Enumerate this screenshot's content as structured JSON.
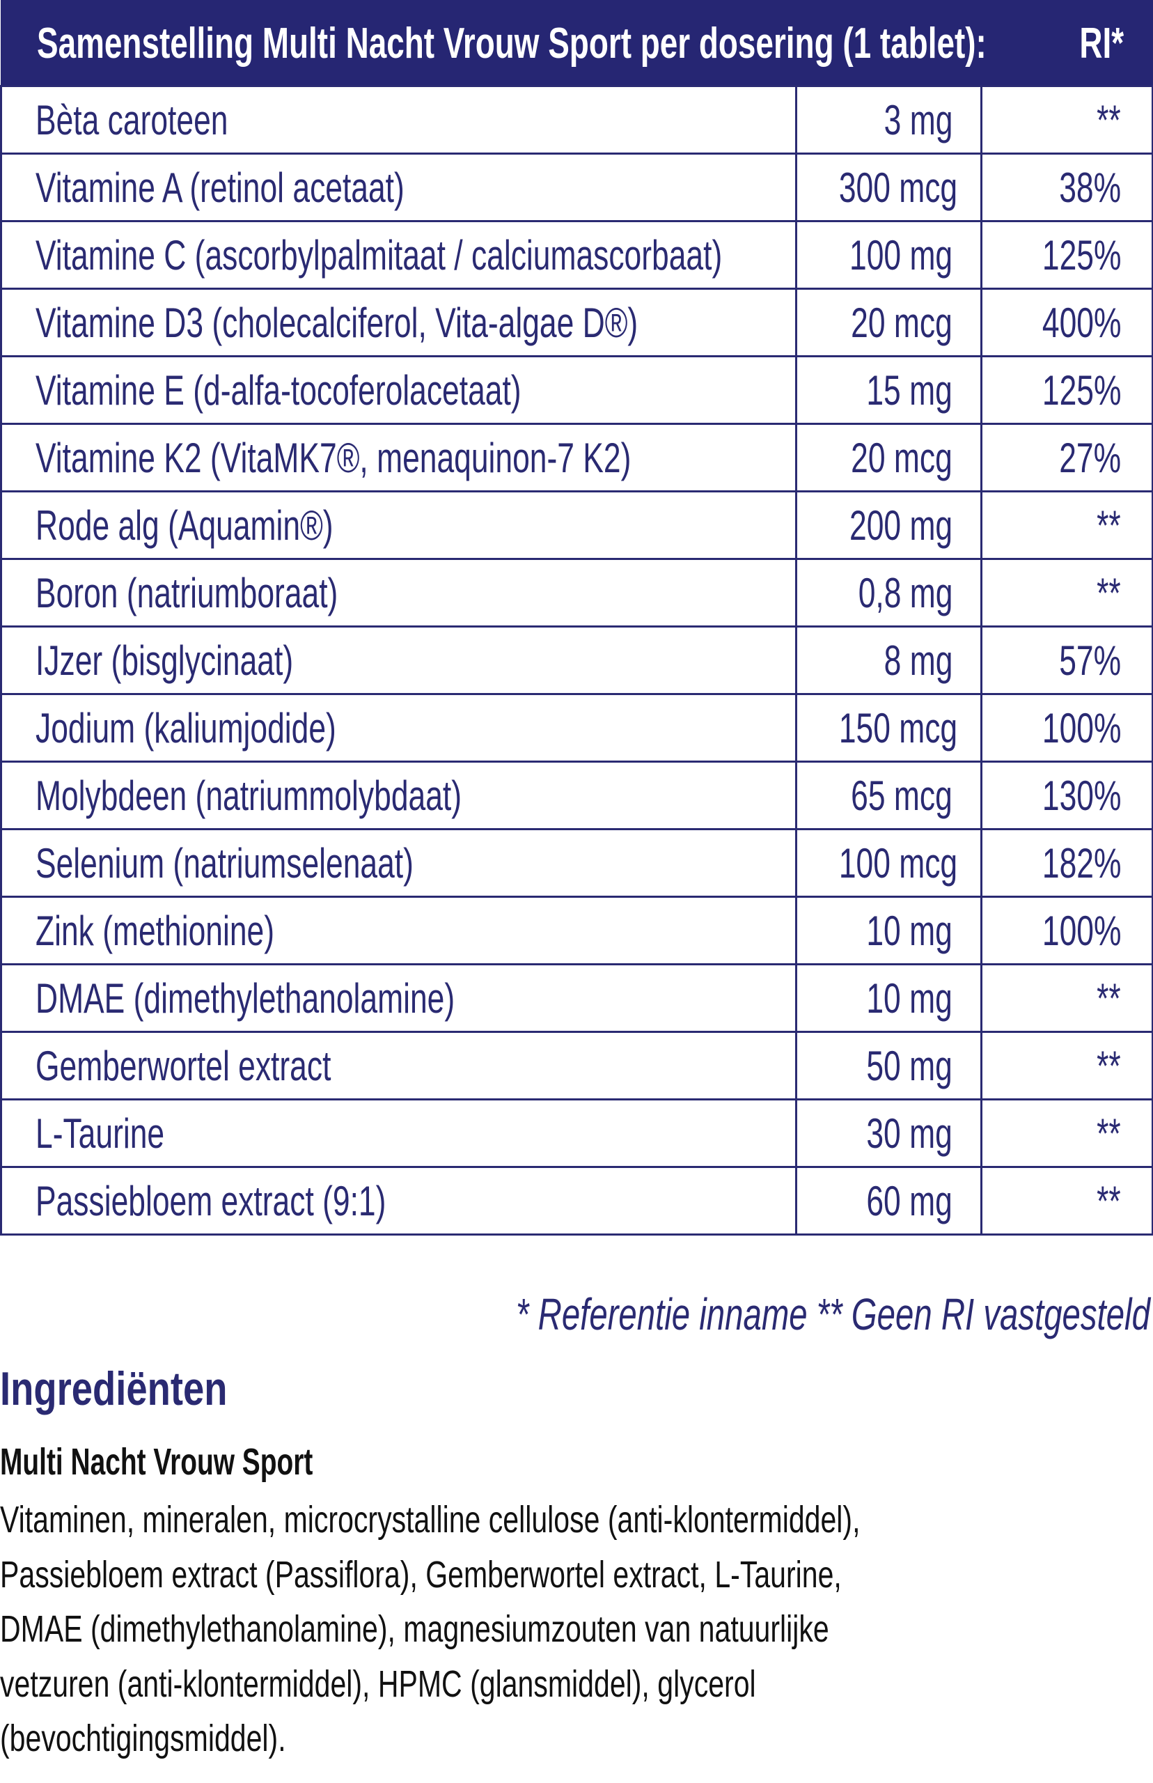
{
  "table": {
    "header": {
      "title": "Samenstelling Multi Nacht Vrouw Sport per dosering (1 tablet):",
      "ri": "RI*"
    },
    "rows": [
      {
        "name": "Bèta caroteen",
        "amount": "3 mg",
        "ri": "**"
      },
      {
        "name": "Vitamine A (retinol acetaat)",
        "amount": "300 mcg",
        "ri": "38%"
      },
      {
        "name": "Vitamine C (ascorbylpalmitaat / calciumascorbaat)",
        "amount": "100 mg",
        "ri": "125%"
      },
      {
        "name": "Vitamine D3 (cholecalciferol, Vita-algae D®)",
        "amount": "20 mcg",
        "ri": "400%"
      },
      {
        "name": "Vitamine E (d-alfa-tocoferolacetaat)",
        "amount": "15 mg",
        "ri": "125%"
      },
      {
        "name": "Vitamine K2 (VitaMK7®, menaquinon-7 K2)",
        "amount": "20 mcg",
        "ri": "27%"
      },
      {
        "name": "Rode alg (Aquamin®)",
        "amount": "200 mg",
        "ri": "**"
      },
      {
        "name": "Boron (natriumboraat)",
        "amount": "0,8 mg",
        "ri": "**"
      },
      {
        "name": "IJzer (bisglycinaat)",
        "amount": "8 mg",
        "ri": "57%"
      },
      {
        "name": "Jodium (kaliumjodide)",
        "amount": "150 mcg",
        "ri": "100%"
      },
      {
        "name": "Molybdeen (natriummolybdaat)",
        "amount": "65 mcg",
        "ri": "130%"
      },
      {
        "name": "Selenium (natriumselenaat)",
        "amount": "100 mcg",
        "ri": "182%"
      },
      {
        "name": "Zink (methionine)",
        "amount": "10 mg",
        "ri": "100%"
      },
      {
        "name": "DMAE (dimethylethanolamine)",
        "amount": "10 mg",
        "ri": "**"
      },
      {
        "name": "Gemberwortel extract",
        "amount": "50 mg",
        "ri": "**"
      },
      {
        "name": "L-Taurine",
        "amount": "30 mg",
        "ri": "**"
      },
      {
        "name": "Passiebloem extract (9:1)",
        "amount": "60 mg",
        "ri": "**"
      }
    ]
  },
  "footnote": "* Referentie inname  ** Geen RI vastgesteld",
  "ingredients": {
    "heading": "Ingrediënten",
    "product": "Multi Nacht Vrouw Sport",
    "lines": [
      "Vitaminen, mineralen, microcrystalline cellulose (anti-klontermiddel),",
      "Passiebloem extract (Passiflora), Gemberwortel extract, L-Taurine,",
      "DMAE (dimethylethanolamine), magnesiumzouten van natuurlijke",
      "vetzuren (anti-klontermiddel), HPMC (glansmiddel), glycerol",
      "(bevochtigingsmiddel)."
    ]
  },
  "colors": {
    "brand": "#262673",
    "text": "#111111"
  }
}
